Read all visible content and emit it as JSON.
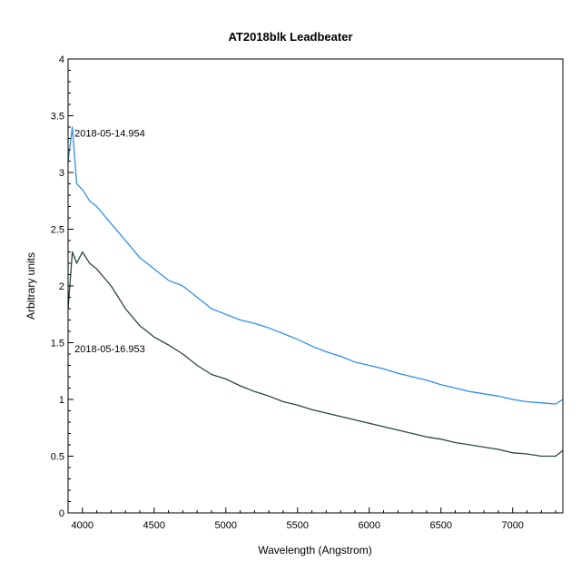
{
  "chart_data": {
    "type": "line",
    "title": "AT2018blk   Leadbeater",
    "xlabel": "Wavelength (Angstrom)",
    "ylabel": "Arbitrary units",
    "xlim": [
      3900,
      7350
    ],
    "ylim": [
      0,
      4
    ],
    "x_ticks": [
      4000,
      4500,
      5000,
      5500,
      6000,
      6500,
      7000
    ],
    "y_ticks": [
      0,
      0.5,
      1,
      1.5,
      2,
      2.5,
      3,
      3.5,
      4
    ],
    "x_tick_labels": [
      "4000",
      "4500",
      "5000",
      "5500",
      "6000",
      "6500",
      "7000"
    ],
    "y_tick_labels": [
      "0",
      "0.5",
      "1",
      "1.5",
      "2",
      "2.5",
      "3",
      "3.5",
      "4"
    ],
    "grid": false,
    "series": [
      {
        "name": "2018-05-14.954",
        "color": "#2f8ee8",
        "x": [
          3900,
          3930,
          3960,
          4000,
          4050,
          4100,
          4200,
          4300,
          4400,
          4500,
          4600,
          4700,
          4800,
          4900,
          5000,
          5100,
          5200,
          5300,
          5400,
          5500,
          5600,
          5700,
          5800,
          5900,
          6000,
          6100,
          6200,
          6300,
          6400,
          6500,
          6600,
          6700,
          6800,
          6900,
          7000,
          7100,
          7200,
          7300,
          7350
        ],
        "y": [
          3.1,
          3.4,
          2.9,
          2.85,
          2.75,
          2.7,
          2.55,
          2.4,
          2.25,
          2.15,
          2.05,
          2.0,
          1.9,
          1.8,
          1.75,
          1.7,
          1.67,
          1.63,
          1.58,
          1.53,
          1.47,
          1.42,
          1.38,
          1.33,
          1.3,
          1.27,
          1.23,
          1.2,
          1.17,
          1.13,
          1.1,
          1.07,
          1.05,
          1.03,
          1.0,
          0.98,
          0.97,
          0.96,
          1.0
        ]
      },
      {
        "name": "2018-05-16.953",
        "color": "#2e4444",
        "x": [
          3900,
          3930,
          3960,
          4000,
          4050,
          4100,
          4200,
          4300,
          4400,
          4500,
          4600,
          4700,
          4800,
          4900,
          5000,
          5100,
          5200,
          5300,
          5400,
          5500,
          5600,
          5700,
          5800,
          5900,
          6000,
          6100,
          6200,
          6300,
          6400,
          6500,
          6600,
          6700,
          6800,
          6900,
          7000,
          7100,
          7200,
          7300,
          7350
        ],
        "y": [
          1.8,
          2.3,
          2.2,
          2.3,
          2.2,
          2.15,
          2.0,
          1.8,
          1.65,
          1.55,
          1.48,
          1.4,
          1.3,
          1.22,
          1.18,
          1.12,
          1.07,
          1.03,
          0.98,
          0.95,
          0.91,
          0.88,
          0.85,
          0.82,
          0.79,
          0.76,
          0.73,
          0.7,
          0.67,
          0.65,
          0.62,
          0.6,
          0.58,
          0.56,
          0.53,
          0.52,
          0.5,
          0.5,
          0.55
        ]
      }
    ],
    "annotations": [
      {
        "text": "2018-05-14.954",
        "x": 3945,
        "y": 3.35
      },
      {
        "text": "2018-05-16.953",
        "x": 3945,
        "y": 1.45
      }
    ]
  }
}
